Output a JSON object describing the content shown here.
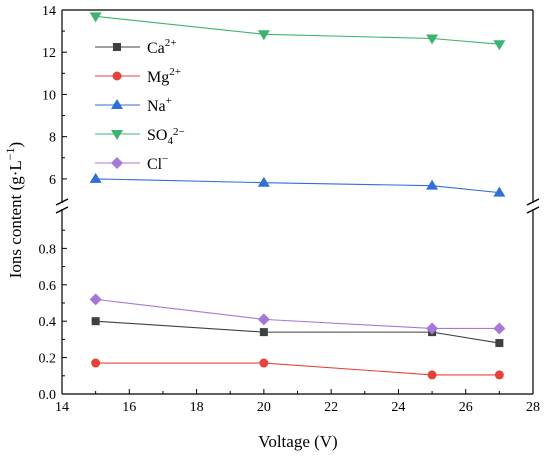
{
  "chart_data": {
    "type": "line",
    "title": "",
    "xlabel": "Voltage (V)",
    "ylabel": "Ions content (g·L",
    "ylabel_sup": "−1",
    "ylabel_close": ")",
    "xlim": [
      14,
      28
    ],
    "xticks": [
      "14",
      "16",
      "18",
      "20",
      "22",
      "24",
      "26",
      "28"
    ],
    "ylim_lower": [
      0.0,
      1.0
    ],
    "yticks_lower": [
      "0.0",
      "0.2",
      "0.4",
      "0.6",
      "0.8"
    ],
    "ylim_upper": [
      5.0,
      14.0
    ],
    "yticks_upper": [
      "6",
      "8",
      "10",
      "12",
      "14"
    ],
    "axis_break": true,
    "grid": false,
    "legend_position": "top-left",
    "x": [
      15,
      20,
      25,
      27
    ],
    "series": [
      {
        "name": "Ca",
        "sup": "2+",
        "sub": "",
        "sup2": "",
        "color": "#404040",
        "marker": "square",
        "values": [
          0.4,
          0.34,
          0.34,
          0.28
        ]
      },
      {
        "name": "Mg",
        "sup": "2+",
        "sub": "",
        "sup2": "",
        "color": "#e8413a",
        "marker": "circle",
        "values": [
          0.17,
          0.17,
          0.105,
          0.105
        ]
      },
      {
        "name": "Na",
        "sup": "+",
        "sub": "",
        "sup2": "",
        "color": "#2f6fd6",
        "marker": "triangle-up",
        "values": [
          6.0,
          5.82,
          5.68,
          5.35
        ]
      },
      {
        "name": "SO",
        "sup": "",
        "sub": "4",
        "sup2": "2−",
        "color": "#3cb371",
        "marker": "triangle-down",
        "values": [
          13.7,
          12.85,
          12.65,
          12.38
        ]
      },
      {
        "name": "Cl",
        "sup": "−",
        "sub": "",
        "sup2": "",
        "color": "#a878d8",
        "marker": "diamond",
        "values": [
          0.52,
          0.41,
          0.36,
          0.36
        ]
      }
    ]
  }
}
